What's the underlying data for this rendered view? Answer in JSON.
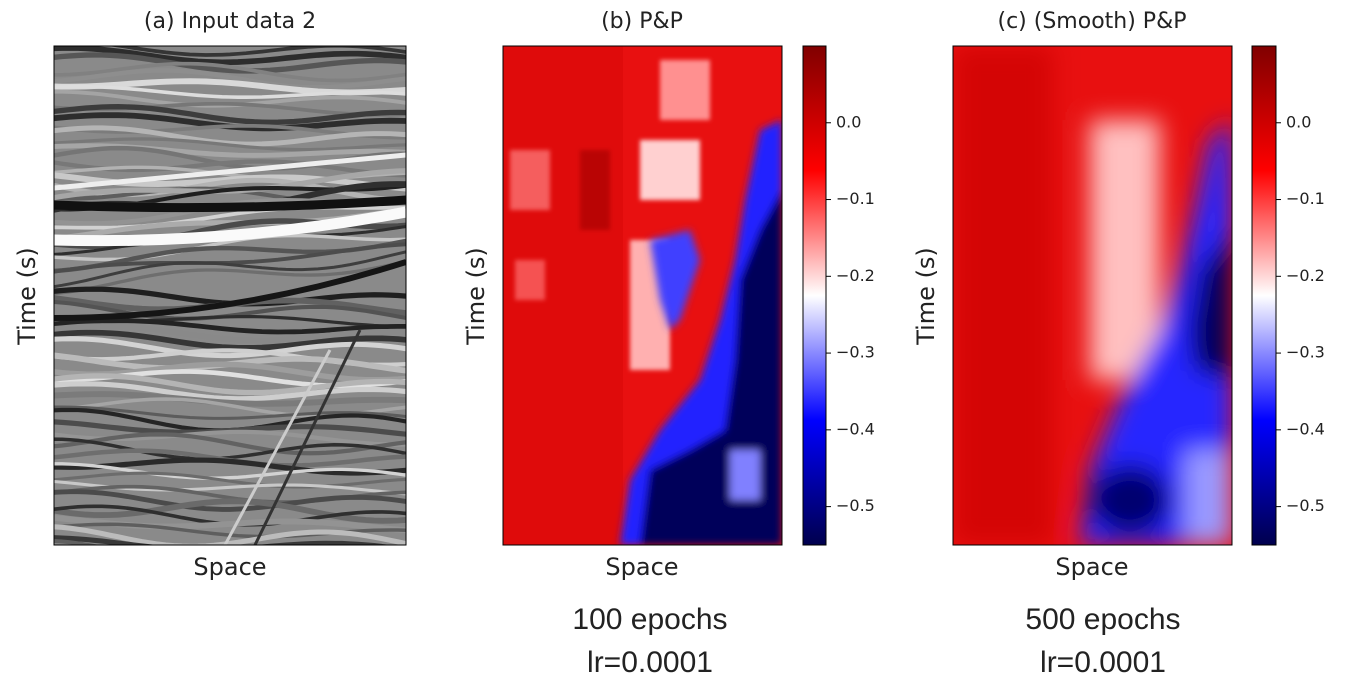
{
  "panels": [
    {
      "title": "(a) Input data 2",
      "xlabel": "Space",
      "ylabel": "Time (s)"
    },
    {
      "title": "(b) P&P",
      "xlabel": "Space",
      "ylabel": "Time (s)",
      "colorbar": {
        "lim": [
          -0.55,
          0.1
        ],
        "ticks": [
          {
            "value": 0,
            "label": "0.0"
          },
          {
            "value": -0.1,
            "label": "−0.1"
          },
          {
            "value": -0.2,
            "label": "−0.2"
          },
          {
            "value": -0.3,
            "label": "−0.3"
          },
          {
            "value": -0.4,
            "label": "−0.4"
          },
          {
            "value": -0.5,
            "label": "−0.5"
          }
        ]
      },
      "caption": [
        "100 epochs",
        "lr=0.0001"
      ]
    },
    {
      "title": "(c) (Smooth) P&P",
      "xlabel": "Space",
      "ylabel": "Time (s)",
      "colorbar": {
        "lim": [
          -0.55,
          0.1
        ],
        "ticks": [
          {
            "value": 0,
            "label": "0.0"
          },
          {
            "value": -0.1,
            "label": "−0.1"
          },
          {
            "value": -0.2,
            "label": "−0.2"
          },
          {
            "value": -0.3,
            "label": "−0.3"
          },
          {
            "value": -0.4,
            "label": "−0.4"
          },
          {
            "value": -0.5,
            "label": "−0.5"
          }
        ]
      },
      "caption": [
        "500 epochs",
        "lr=0.0001"
      ]
    }
  ]
}
